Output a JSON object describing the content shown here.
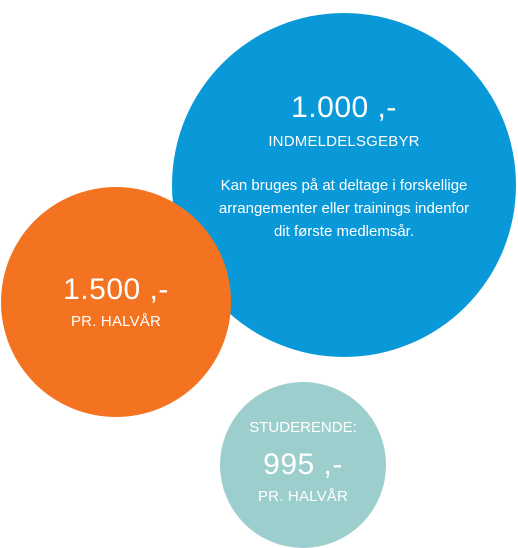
{
  "colors": {
    "blue": "#0a99d8",
    "orange": "#f47321",
    "teal": "#9ccecd",
    "text": "#ffffff"
  },
  "membership": {
    "price": "1.000 ,-",
    "label": "INDMELDELSGEBYR",
    "description": "Kan bruges på at deltage i forskellige arrangementer eller trainings indenfor dit første medlemsår."
  },
  "semester": {
    "price": "1.500 ,-",
    "label": "PR. HALVÅR"
  },
  "student": {
    "heading": "STUDERENDE:",
    "price": "995 ,-",
    "label": "PR. HALVÅR"
  }
}
